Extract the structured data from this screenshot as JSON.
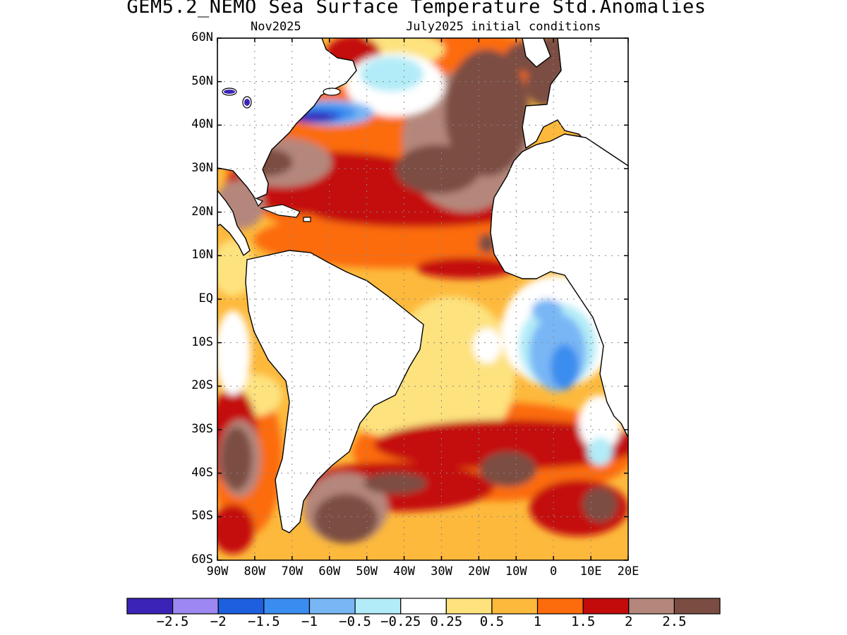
{
  "title": "GEM5.2_NEMO Sea Surface Temperature Std.Anomalies",
  "subtitle_left": "Nov2025",
  "subtitle_right": "July2025 initial conditions",
  "map": {
    "lat_labels": [
      "60N",
      "50N",
      "40N",
      "30N",
      "20N",
      "10N",
      "EQ",
      "10S",
      "20S",
      "30S",
      "40S",
      "50S",
      "60S"
    ],
    "lon_labels": [
      "90W",
      "80W",
      "70W",
      "60W",
      "50W",
      "40W",
      "30W",
      "20W",
      "10W",
      "0",
      "10E",
      "20E"
    ],
    "lon_range": [
      -90,
      20
    ],
    "lat_range": [
      -60,
      60
    ],
    "grid": "dotted"
  },
  "colorbar": {
    "colors": [
      "#3b23b8",
      "#9d87f0",
      "#1e5fe0",
      "#3a8df0",
      "#78b6f5",
      "#b2ecf8",
      "#ffffff",
      "#fde27e",
      "#fdb93c",
      "#fc6c0c",
      "#c40b0b",
      "#b5877c",
      "#7b4d42"
    ],
    "labels": [
      "−2.5",
      "−2",
      "−1.5",
      "−1",
      "−0.5",
      "−0.25",
      "0.25",
      "0.5",
      "1",
      "1.5",
      "2",
      "2.5"
    ]
  }
}
